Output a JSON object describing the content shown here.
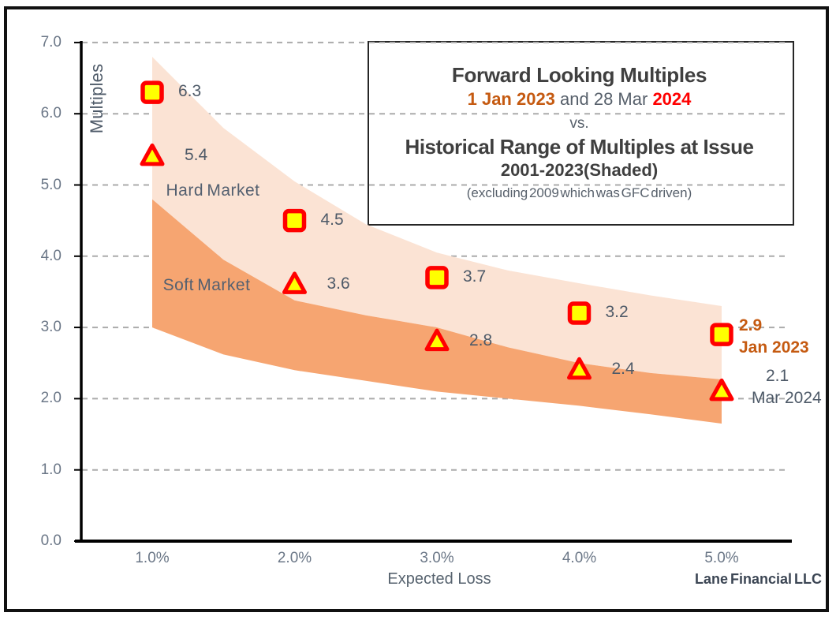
{
  "source_label": "Lane Financial LLC",
  "title_box": {
    "line1": "Forward Looking Multiples",
    "line2_segments": [
      {
        "text": "1 Jan 2023",
        "color": "#C55A11",
        "bold": true
      },
      {
        "text": " and 28 Mar ",
        "color": "#57606B",
        "bold": false
      },
      {
        "text": "2024",
        "color": "#FF0000",
        "bold": true
      }
    ],
    "line3": "vs.",
    "line4": "Historical Range of Multiples at Issue",
    "line5": "2001-2023(Shaded)",
    "line6": "(excluding 2009 which was GFC driven)"
  },
  "chart_data": {
    "type": "scatter",
    "title": "Forward Looking Multiples 1 Jan 2023 and 28 Mar 2024 vs. Historical Range of Multiples at Issue 2001-2023 (Shaded)",
    "xlabel": "Expected Loss",
    "ylabel": "Multiples",
    "x_tick_labels": [
      "1.0%",
      "2.0%",
      "3.0%",
      "4.0%",
      "5.0%"
    ],
    "x_values": [
      1,
      2,
      3,
      4,
      5
    ],
    "y_tick_labels": [
      "0.0",
      "1.0",
      "2.0",
      "3.0",
      "4.0",
      "5.0",
      "6.0",
      "7.0"
    ],
    "ylim": [
      0,
      7
    ],
    "grid": "dashed horizontal",
    "gridline_color": "#ABABAB",
    "axis_color": "#000000",
    "series": [
      {
        "name": "1 Jan 2023",
        "marker": "square",
        "marker_border_color": "#FF0000",
        "marker_fill_color": "#FFFF00",
        "values": [
          6.3,
          4.5,
          3.7,
          3.2,
          2.9
        ],
        "end_annotation": {
          "lines": [
            "2.9",
            "Jan 2023"
          ],
          "color": "#C55A11",
          "bold": true
        }
      },
      {
        "name": "28 Mar 2024",
        "marker": "triangle",
        "marker_border_color": "#FF0000",
        "marker_fill_color": "#FFFF00",
        "values": [
          5.4,
          3.6,
          2.8,
          2.4,
          2.1
        ],
        "end_annotation": {
          "lines": [
            "2.1",
            "Mar 2024"
          ],
          "color": "#4E5A68",
          "bold": false
        }
      }
    ],
    "bands": {
      "x": [
        1,
        1.5,
        2,
        2.5,
        3,
        3.5,
        4,
        4.5,
        5
      ],
      "hard_top": [
        6.8,
        5.8,
        5.05,
        4.45,
        4.05,
        3.8,
        3.62,
        3.45,
        3.3
      ],
      "mid_boundary": [
        4.8,
        3.95,
        3.38,
        3.17,
        3.0,
        2.72,
        2.5,
        2.36,
        2.27
      ],
      "soft_bottom": [
        3.0,
        2.62,
        2.4,
        2.25,
        2.1,
        2.0,
        1.9,
        1.78,
        1.65
      ],
      "hard_label": "Hard Market",
      "soft_label": "Soft Market",
      "hard_color": "#FBE3D4",
      "soft_color": "#F6A571"
    }
  }
}
